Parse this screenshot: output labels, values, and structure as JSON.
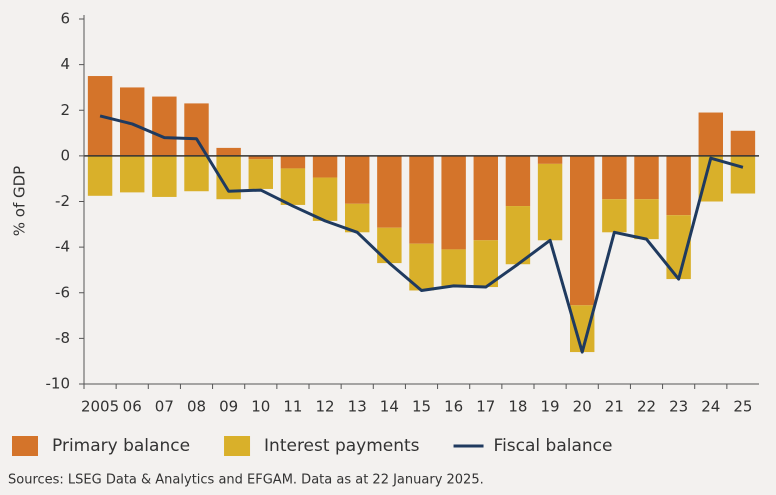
{
  "chart_data": {
    "type": "stacked_bar_line",
    "y_label": "% of GDP",
    "categories": [
      "2005",
      "06",
      "07",
      "08",
      "09",
      "10",
      "11",
      "12",
      "13",
      "14",
      "15",
      "16",
      "17",
      "18",
      "19",
      "20",
      "21",
      "22",
      "23",
      "24",
      "25"
    ],
    "series": [
      {
        "name": "Primary balance",
        "type": "bar",
        "color": "#d4742a",
        "values": [
          3.5,
          3.0,
          2.6,
          2.3,
          0.35,
          -0.15,
          -0.55,
          -0.95,
          -2.1,
          -3.15,
          -3.85,
          -4.1,
          -3.7,
          -2.2,
          -0.35,
          -6.55,
          -1.9,
          -1.9,
          -2.6,
          1.9,
          1.1
        ]
      },
      {
        "name": "Interest payments",
        "type": "bar",
        "color": "#d9b02a",
        "values": [
          -1.75,
          -1.6,
          -1.8,
          -1.55,
          -1.9,
          -1.3,
          -1.6,
          -1.9,
          -1.25,
          -1.55,
          -2.05,
          -1.6,
          -2.05,
          -2.55,
          -3.35,
          -2.05,
          -1.45,
          -1.75,
          -2.8,
          -2.0,
          -1.65
        ]
      },
      {
        "name": "Fiscal balance",
        "type": "line",
        "color": "#1f3a5f",
        "values": [
          1.75,
          1.4,
          0.8,
          0.75,
          -1.55,
          -1.5,
          -2.2,
          -2.85,
          -3.35,
          -4.7,
          -5.9,
          -5.7,
          -5.75,
          -4.75,
          -3.7,
          -8.6,
          -3.35,
          -3.65,
          -5.4,
          -0.1,
          -0.5
        ]
      }
    ],
    "ylim": [
      -10,
      6
    ],
    "yticks": [
      -10,
      -8,
      -6,
      -4,
      -2,
      0,
      2,
      4,
      6
    ],
    "legend": "bottom",
    "source": "Sources: LSEG Data & Analytics and EFGAM. Data as at 22 January 2025."
  }
}
